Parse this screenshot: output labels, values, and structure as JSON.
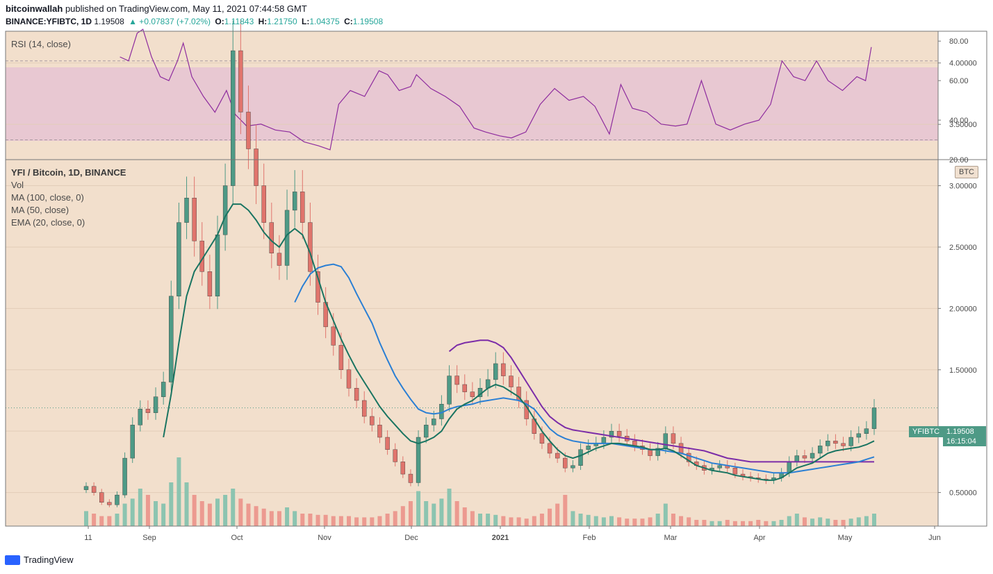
{
  "header": {
    "publisher": "bitcoinwallah",
    "published_text": " published on TradingView.com, May 11, 2021 07:44:58 GMT",
    "symbol": "BINANCE:YFIBTC, 1D",
    "last": "1.19508",
    "change": "▲ +0.07837 (+7.02%)",
    "o_label": "O:",
    "o": "1.11843",
    "h_label": "H:",
    "h": "1.21750",
    "l_label": "L:",
    "l": "1.04375",
    "c_label": "C:",
    "c": "1.19508"
  },
  "rsi_panel": {
    "label": "RSI (14, close)"
  },
  "price_panel": {
    "legend": [
      "YFI / Bitcoin, 1D, BINANCE",
      "Vol",
      "MA (100, close, 0)",
      "MA (50, close)",
      "EMA (20, close, 0)"
    ],
    "currency_tag": "BTC",
    "pair_tag": "YFIBTC",
    "price_tag": "1.19508",
    "timer_tag": "16:15:04"
  },
  "footer": {
    "brand": "TradingView"
  },
  "colors": {
    "background": "#f2dfcc",
    "rsi_band": "#e8c8d2",
    "up": "#4e9a86",
    "down": "#e0746c",
    "vol_up": "#8cc4b0",
    "vol_down": "#ec9a90",
    "rsi_line": "#8e2c9e",
    "ma100": "#7b2ca8",
    "ma50": "#2a7fd4",
    "ema20": "#197461"
  },
  "chart_data": [
    {
      "type": "line",
      "title": "RSI (14, close)",
      "ylim": [
        20,
        85
      ],
      "yticks": [
        "80.00",
        "60.00",
        "40.00",
        "20.00"
      ],
      "bands": [
        30,
        70
      ],
      "x": [
        "2020-08-22",
        "2020-08-25",
        "2020-08-28",
        "2020-08-30",
        "2020-09-02",
        "2020-09-05",
        "2020-09-08",
        "2020-09-11",
        "2020-09-13",
        "2020-09-16",
        "2020-09-20",
        "2020-09-24",
        "2020-09-28",
        "2020-10-01",
        "2020-10-05",
        "2020-10-10",
        "2020-10-15",
        "2020-10-20",
        "2020-10-25",
        "2020-10-30",
        "2020-11-03",
        "2020-11-06",
        "2020-11-10",
        "2020-11-15",
        "2020-11-20",
        "2020-11-23",
        "2020-11-27",
        "2020-12-01",
        "2020-12-03",
        "2020-12-08",
        "2020-12-13",
        "2020-12-18",
        "2020-12-23",
        "2020-12-27",
        "2021-01-01",
        "2021-01-05",
        "2021-01-10",
        "2021-01-15",
        "2021-01-20",
        "2021-01-25",
        "2021-01-30",
        "2021-02-03",
        "2021-02-08",
        "2021-02-12",
        "2021-02-16",
        "2021-02-21",
        "2021-02-26",
        "2021-03-03",
        "2021-03-07",
        "2021-03-12",
        "2021-03-17",
        "2021-03-22",
        "2021-03-27",
        "2021-04-01",
        "2021-04-05",
        "2021-04-09",
        "2021-04-13",
        "2021-04-17",
        "2021-04-21",
        "2021-04-25",
        "2021-04-30",
        "2021-05-05",
        "2021-05-08",
        "2021-05-10"
      ],
      "series": [
        {
          "values": [
            72,
            70,
            84,
            86,
            72,
            62,
            60,
            70,
            79,
            62,
            52,
            44,
            55,
            43,
            37,
            38,
            35,
            34,
            29,
            27,
            25,
            48,
            55,
            52,
            65,
            63,
            55,
            57,
            63,
            56,
            52,
            47,
            36,
            34,
            32,
            31,
            34,
            48,
            56,
            50,
            52,
            47,
            33,
            58,
            46,
            44,
            38,
            37,
            38,
            60,
            38,
            35,
            38,
            40,
            48,
            70,
            62,
            60,
            70,
            60,
            55,
            62,
            60,
            77
          ]
        }
      ]
    },
    {
      "type": "candlestick",
      "title": "YFI / Bitcoin, 1D, BINANCE",
      "ylim": [
        0.1,
        4.3
      ],
      "yticks": [
        "4.00000",
        "3.50000",
        "3.00000",
        "2.50000",
        "2.00000",
        "1.50000",
        "1.00000",
        "0.50000"
      ],
      "xticks": [
        "11",
        "Sep",
        "Oct",
        "Nov",
        "Dec",
        "2021",
        "Feb",
        "Mar",
        "Apr",
        "May",
        "Jun"
      ],
      "close": [
        0.55,
        0.5,
        0.42,
        0.4,
        0.48,
        0.78,
        1.05,
        1.18,
        1.15,
        1.28,
        1.4,
        2.1,
        2.7,
        2.9,
        2.55,
        2.3,
        2.1,
        2.6,
        3.0,
        4.1,
        3.6,
        3.3,
        3.0,
        2.7,
        2.45,
        2.35,
        2.8,
        2.95,
        2.7,
        2.3,
        2.05,
        1.85,
        1.7,
        1.5,
        1.35,
        1.25,
        1.12,
        1.05,
        0.95,
        0.85,
        0.75,
        0.65,
        0.58,
        0.95,
        1.05,
        1.1,
        1.22,
        1.45,
        1.38,
        1.32,
        1.28,
        1.35,
        1.42,
        1.55,
        1.45,
        1.36,
        1.25,
        1.1,
        0.98,
        0.9,
        0.82,
        0.78,
        0.7,
        0.72,
        0.85,
        0.88,
        0.9,
        0.95,
        1.0,
        0.96,
        0.92,
        0.88,
        0.85,
        0.8,
        0.86,
        0.98,
        0.9,
        0.82,
        0.75,
        0.72,
        0.68,
        0.7,
        0.72,
        0.7,
        0.65,
        0.63,
        0.62,
        0.61,
        0.6,
        0.62,
        0.66,
        0.75,
        0.8,
        0.78,
        0.82,
        0.88,
        0.92,
        0.9,
        0.88,
        0.95,
        0.98,
        1.02,
        1.19
      ],
      "vol": [
        0.12,
        0.1,
        0.08,
        0.08,
        0.1,
        0.18,
        0.22,
        0.3,
        0.25,
        0.2,
        0.18,
        0.35,
        0.55,
        0.35,
        0.25,
        0.2,
        0.18,
        0.22,
        0.25,
        0.3,
        0.22,
        0.18,
        0.16,
        0.14,
        0.12,
        0.12,
        0.15,
        0.12,
        0.1,
        0.1,
        0.09,
        0.09,
        0.08,
        0.08,
        0.08,
        0.07,
        0.07,
        0.07,
        0.08,
        0.1,
        0.12,
        0.16,
        0.2,
        0.28,
        0.2,
        0.18,
        0.22,
        0.3,
        0.2,
        0.15,
        0.12,
        0.1,
        0.1,
        0.09,
        0.08,
        0.07,
        0.07,
        0.06,
        0.08,
        0.1,
        0.14,
        0.18,
        0.25,
        0.12,
        0.1,
        0.09,
        0.08,
        0.07,
        0.08,
        0.07,
        0.06,
        0.06,
        0.06,
        0.07,
        0.1,
        0.18,
        0.1,
        0.08,
        0.07,
        0.05,
        0.05,
        0.04,
        0.04,
        0.05,
        0.04,
        0.04,
        0.04,
        0.05,
        0.04,
        0.04,
        0.05,
        0.08,
        0.1,
        0.07,
        0.06,
        0.07,
        0.06,
        0.05,
        0.05,
        0.06,
        0.07,
        0.08,
        0.1
      ],
      "ema20": [
        null,
        null,
        null,
        null,
        null,
        null,
        null,
        null,
        null,
        null,
        0.95,
        1.3,
        1.72,
        2.1,
        2.3,
        2.4,
        2.5,
        2.6,
        2.75,
        2.85,
        2.85,
        2.8,
        2.72,
        2.62,
        2.55,
        2.5,
        2.6,
        2.65,
        2.6,
        2.45,
        2.25,
        2.05,
        1.9,
        1.75,
        1.62,
        1.5,
        1.4,
        1.3,
        1.2,
        1.12,
        1.05,
        0.98,
        0.92,
        0.9,
        0.92,
        0.95,
        1.0,
        1.1,
        1.18,
        1.22,
        1.25,
        1.3,
        1.35,
        1.38,
        1.36,
        1.32,
        1.28,
        1.2,
        1.1,
        1.0,
        0.92,
        0.85,
        0.8,
        0.78,
        0.8,
        0.83,
        0.86,
        0.88,
        0.9,
        0.9,
        0.89,
        0.88,
        0.87,
        0.85,
        0.85,
        0.86,
        0.84,
        0.8,
        0.76,
        0.72,
        0.7,
        0.68,
        0.67,
        0.66,
        0.64,
        0.63,
        0.62,
        0.61,
        0.6,
        0.6,
        0.62,
        0.66,
        0.7,
        0.72,
        0.74,
        0.78,
        0.82,
        0.84,
        0.85,
        0.86,
        0.87,
        0.89,
        0.92
      ],
      "ma50": [
        null,
        null,
        null,
        null,
        null,
        null,
        null,
        null,
        null,
        null,
        null,
        null,
        null,
        null,
        null,
        null,
        null,
        null,
        null,
        null,
        null,
        null,
        null,
        null,
        null,
        null,
        null,
        2.05,
        2.18,
        2.28,
        2.33,
        2.35,
        2.36,
        2.34,
        2.25,
        2.12,
        2.0,
        1.88,
        1.72,
        1.58,
        1.45,
        1.35,
        1.26,
        1.18,
        1.15,
        1.14,
        1.15,
        1.18,
        1.2,
        1.21,
        1.22,
        1.24,
        1.25,
        1.26,
        1.27,
        1.26,
        1.25,
        1.22,
        1.18,
        1.1,
        1.02,
        0.97,
        0.94,
        0.92,
        0.91,
        0.9,
        0.9,
        0.9,
        0.9,
        0.89,
        0.88,
        0.87,
        0.86,
        0.85,
        0.85,
        0.84,
        0.83,
        0.82,
        0.8,
        0.78,
        0.76,
        0.74,
        0.73,
        0.72,
        0.71,
        0.7,
        0.69,
        0.68,
        0.67,
        0.66,
        0.66,
        0.66,
        0.67,
        0.68,
        0.69,
        0.7,
        0.71,
        0.72,
        0.73,
        0.74,
        0.75,
        0.77,
        0.79
      ],
      "ma100": [
        null,
        null,
        null,
        null,
        null,
        null,
        null,
        null,
        null,
        null,
        null,
        null,
        null,
        null,
        null,
        null,
        null,
        null,
        null,
        null,
        null,
        null,
        null,
        null,
        null,
        null,
        null,
        null,
        null,
        null,
        null,
        null,
        null,
        null,
        null,
        null,
        null,
        null,
        null,
        null,
        null,
        null,
        null,
        null,
        null,
        null,
        null,
        1.65,
        1.7,
        1.72,
        1.73,
        1.74,
        1.74,
        1.72,
        1.68,
        1.6,
        1.5,
        1.4,
        1.3,
        1.2,
        1.12,
        1.07,
        1.03,
        1.01,
        1.0,
        0.99,
        0.98,
        0.97,
        0.96,
        0.95,
        0.94,
        0.93,
        0.92,
        0.91,
        0.9,
        0.89,
        0.88,
        0.87,
        0.86,
        0.85,
        0.84,
        0.82,
        0.8,
        0.78,
        0.77,
        0.76,
        0.75,
        0.75,
        0.75,
        0.75,
        0.75,
        0.75,
        0.75,
        0.75,
        0.75,
        0.75,
        0.75,
        0.75,
        0.75,
        0.75,
        0.75,
        0.75,
        0.75
      ]
    }
  ]
}
